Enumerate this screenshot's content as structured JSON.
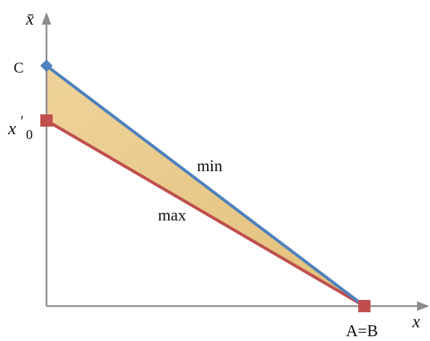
{
  "diagram": {
    "axes": {
      "y_label": "x̄",
      "x_label": "x"
    },
    "points": {
      "C": {
        "label": "C"
      },
      "x0_prime": {
        "label_main": "x",
        "label_prime": "′",
        "label_sub": "0"
      },
      "AB": {
        "label": "A=B"
      }
    },
    "lines": {
      "min": {
        "label": "min",
        "color": "#4f81bd"
      },
      "max": {
        "label": "max",
        "color": "#c0504d"
      }
    },
    "region": {
      "fill": "#e8c98a"
    },
    "axis_color": "#8c8c8c"
  }
}
